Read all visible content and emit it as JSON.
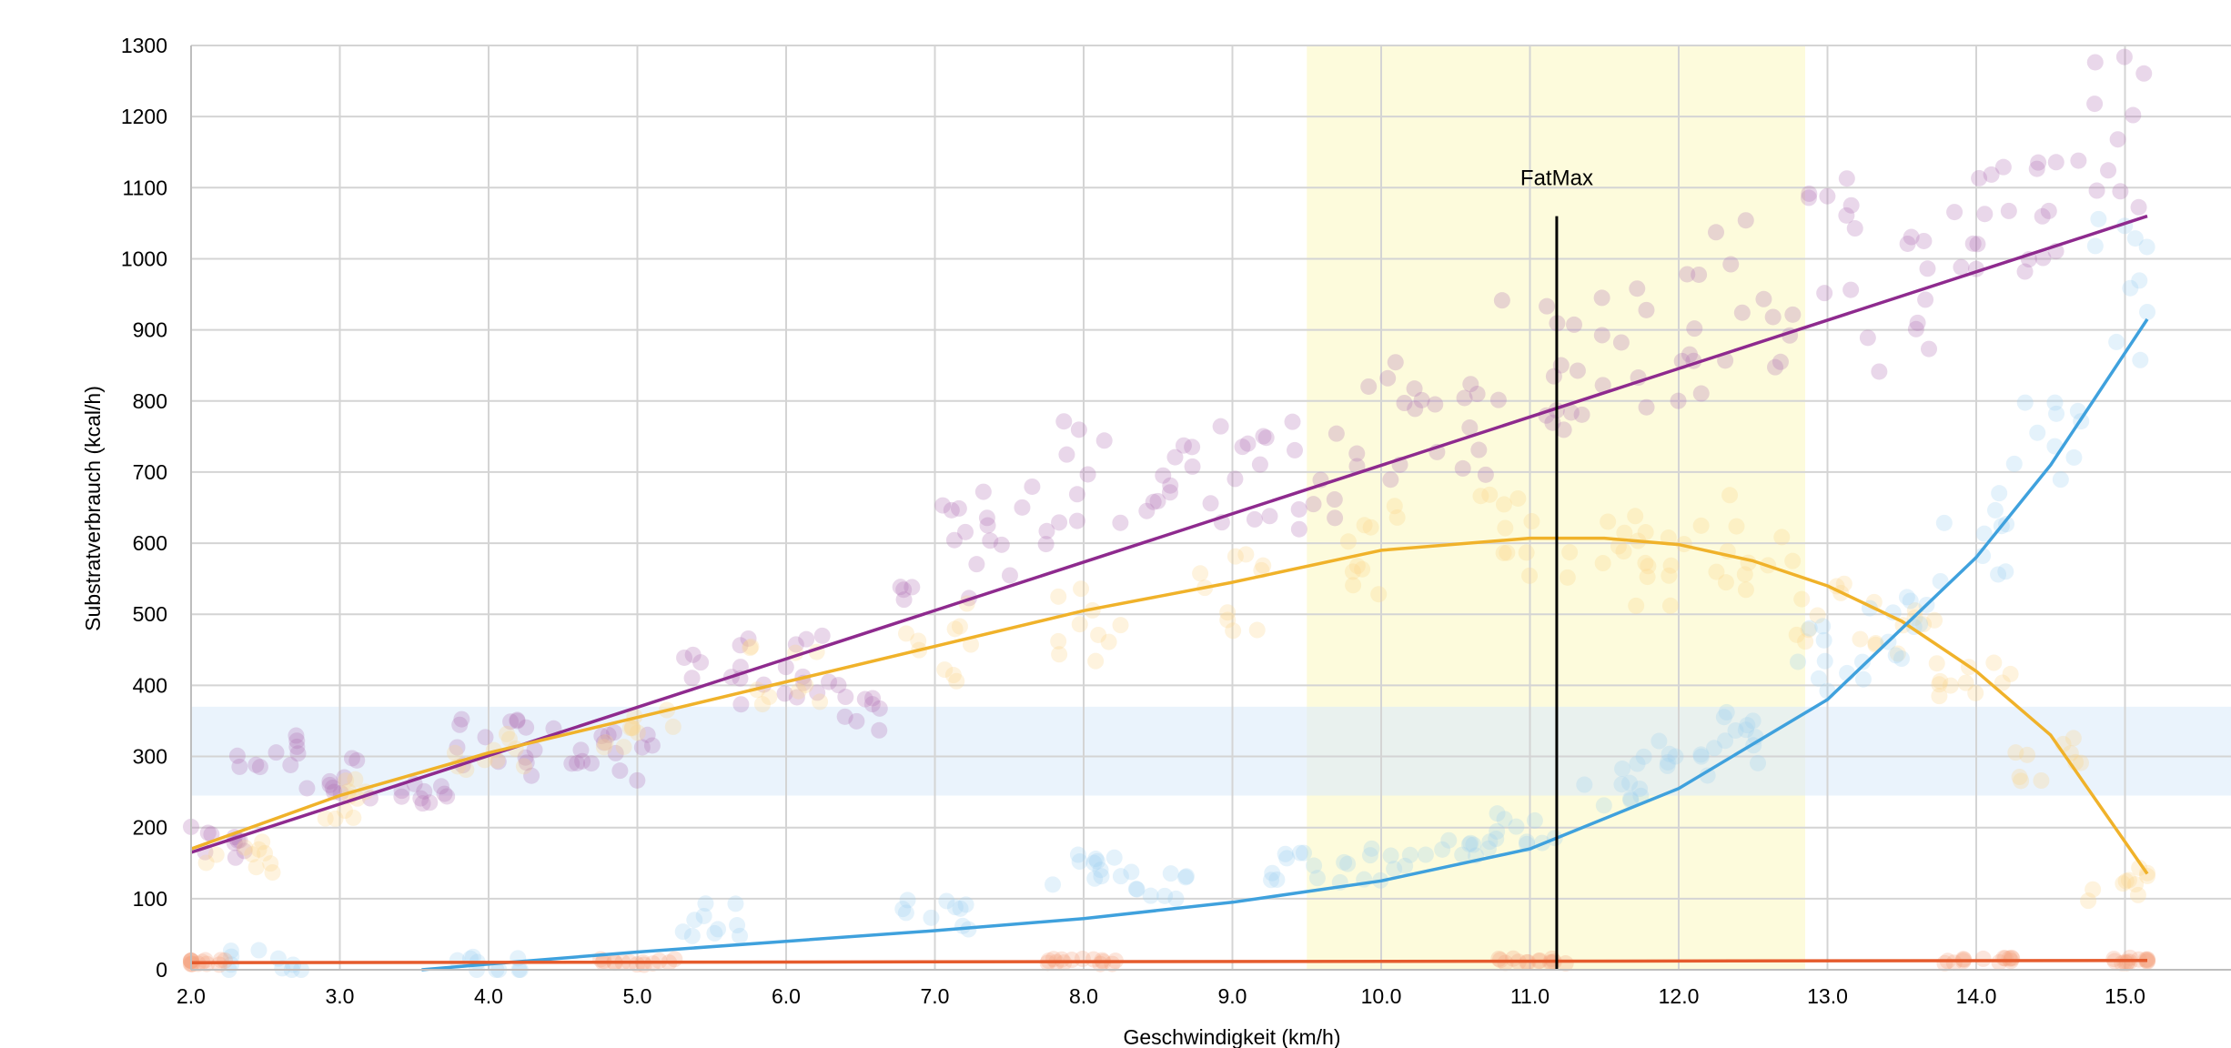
{
  "chart_data": {
    "type": "scatter",
    "xlabel": "Geschwindigkeit (km/h)",
    "ylabel": "Substratverbrauch (kcal/h)",
    "xlim": [
      2.0,
      15.2
    ],
    "ylim": [
      0,
      1300
    ],
    "x_ticks": [
      "2.0",
      "3.0",
      "4.0",
      "5.0",
      "6.0",
      "7.0",
      "8.0",
      "9.0",
      "10.0",
      "11.0",
      "12.0",
      "13.0",
      "14.0",
      "15.0"
    ],
    "y_ticks": [
      "0",
      "100",
      "200",
      "300",
      "400",
      "500",
      "600",
      "700",
      "800",
      "900",
      "1000",
      "1100",
      "1200",
      "1300"
    ],
    "grid": true,
    "legend": "none",
    "bands": [
      {
        "axis": "x",
        "from": 9.5,
        "to": 12.85,
        "color": "#fdfbd8"
      },
      {
        "axis": "y",
        "from": 245,
        "to": 370,
        "color": "#dcebfa"
      }
    ],
    "annotations": [
      {
        "text": "FatMax",
        "x": 11.18,
        "line_from": 0,
        "line_to": 1060
      }
    ],
    "series": [
      {
        "key": "total",
        "color": "#8e2a8e",
        "point_color": "#b070b4",
        "trend": [
          [
            2.0,
            165
          ],
          [
            15.15,
            1060
          ]
        ],
        "points": [
          [
            2.2,
            180
          ],
          [
            2.5,
            300
          ],
          [
            3.0,
            270
          ],
          [
            3.5,
            250
          ],
          [
            4.0,
            320
          ],
          [
            4.5,
            310
          ],
          [
            5.0,
            300
          ],
          [
            5.5,
            420
          ],
          [
            6.0,
            420
          ],
          [
            6.5,
            380
          ],
          [
            7.0,
            590
          ],
          [
            7.5,
            610
          ],
          [
            8.0,
            700
          ],
          [
            8.5,
            660
          ],
          [
            9.0,
            700
          ],
          [
            9.5,
            700
          ],
          [
            10.0,
            780
          ],
          [
            10.5,
            780
          ],
          [
            11.0,
            850
          ],
          [
            11.5,
            880
          ],
          [
            12.0,
            880
          ],
          [
            12.5,
            960
          ],
          [
            13.0,
            1000
          ],
          [
            13.5,
            950
          ],
          [
            14.0,
            1050
          ],
          [
            14.5,
            1100
          ],
          [
            15.0,
            1180
          ]
        ]
      },
      {
        "key": "fat",
        "color": "#f0b22a",
        "point_color": "#fbd38a",
        "trend": [
          [
            2.0,
            170
          ],
          [
            3.0,
            245
          ],
          [
            4.0,
            305
          ],
          [
            5.0,
            355
          ],
          [
            6.0,
            405
          ],
          [
            7.0,
            455
          ],
          [
            8.0,
            505
          ],
          [
            9.0,
            545
          ],
          [
            10.0,
            590
          ],
          [
            11.0,
            607
          ],
          [
            11.5,
            607
          ],
          [
            12.0,
            598
          ],
          [
            12.5,
            575
          ],
          [
            13.0,
            540
          ],
          [
            13.5,
            490
          ],
          [
            14.0,
            420
          ],
          [
            14.5,
            330
          ],
          [
            15.15,
            135
          ]
        ],
        "points": [
          [
            2.3,
            160
          ],
          [
            3.0,
            240
          ],
          [
            4.0,
            300
          ],
          [
            5.0,
            330
          ],
          [
            6.0,
            420
          ],
          [
            7.0,
            460
          ],
          [
            8.0,
            480
          ],
          [
            9.0,
            540
          ],
          [
            10.0,
            600
          ],
          [
            10.8,
            600
          ],
          [
            11.5,
            580
          ],
          [
            12.0,
            580
          ],
          [
            12.5,
            600
          ],
          [
            13.0,
            520
          ],
          [
            13.5,
            470
          ],
          [
            14.0,
            400
          ],
          [
            14.5,
            300
          ],
          [
            15.0,
            120
          ]
        ]
      },
      {
        "key": "carbohydrate",
        "color": "#3fa1dd",
        "point_color": "#9fd0f2",
        "trend": [
          [
            3.55,
            0
          ],
          [
            4.0,
            8
          ],
          [
            5.0,
            25
          ],
          [
            6.0,
            40
          ],
          [
            7.0,
            55
          ],
          [
            8.0,
            72
          ],
          [
            9.0,
            95
          ],
          [
            10.0,
            125
          ],
          [
            11.0,
            170
          ],
          [
            12.0,
            255
          ],
          [
            13.0,
            380
          ],
          [
            14.0,
            580
          ],
          [
            14.5,
            710
          ],
          [
            15.15,
            915
          ]
        ],
        "points": [
          [
            2.5,
            10
          ],
          [
            4.0,
            10
          ],
          [
            5.5,
            70
          ],
          [
            7.0,
            80
          ],
          [
            8.0,
            140
          ],
          [
            8.5,
            120
          ],
          [
            9.5,
            140
          ],
          [
            10.0,
            150
          ],
          [
            10.5,
            160
          ],
          [
            11.0,
            200
          ],
          [
            11.5,
            260
          ],
          [
            12.0,
            300
          ],
          [
            12.5,
            330
          ],
          [
            13.0,
            440
          ],
          [
            13.5,
            470
          ],
          [
            14.0,
            600
          ],
          [
            14.5,
            780
          ],
          [
            15.0,
            950
          ]
        ]
      },
      {
        "key": "protein",
        "color": "#e55b2d",
        "point_color": "#f4a37e",
        "trend": [
          [
            2.0,
            10
          ],
          [
            15.15,
            13
          ]
        ],
        "points": [
          [
            2.0,
            10
          ],
          [
            5.0,
            11
          ],
          [
            8.0,
            12
          ],
          [
            11.0,
            12
          ],
          [
            14.0,
            13
          ],
          [
            15.15,
            13
          ]
        ]
      }
    ]
  }
}
